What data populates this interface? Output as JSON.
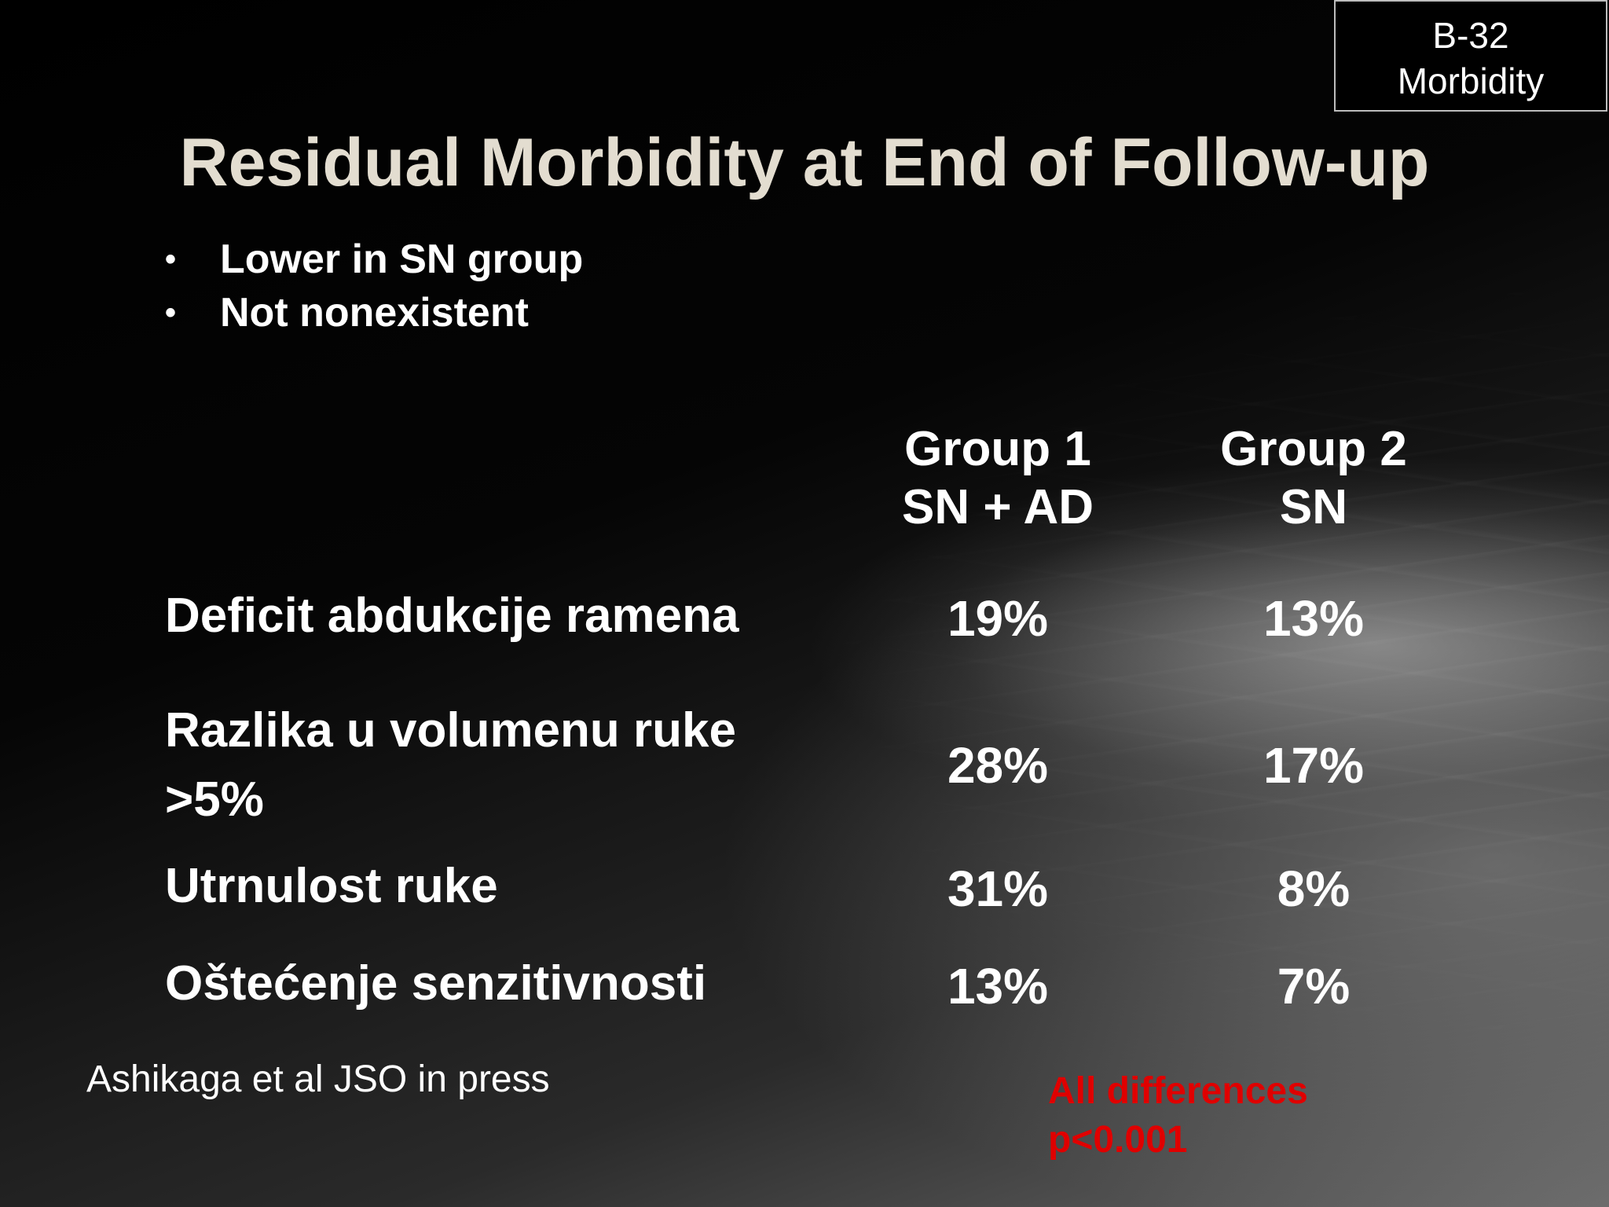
{
  "badge": {
    "line1": "B-32",
    "line2": "Morbidity"
  },
  "title": "Residual Morbidity at End of Follow-up",
  "bullets": [
    "Lower in SN group",
    "Not nonexistent"
  ],
  "table": {
    "columns": [
      {
        "line1": "Group 1",
        "line2": "SN + AD"
      },
      {
        "line1": "Group 2",
        "line2": "SN"
      }
    ],
    "rows": [
      {
        "label": "Deficit abdukcije ramena",
        "g1": "19%",
        "g2": "13%"
      },
      {
        "label": "Razlika u volumenu ruke >5%",
        "g1": "28%",
        "g2": "17%"
      },
      {
        "label": "Utrnulost ruke",
        "g1": "31%",
        "g2": "8%"
      },
      {
        "label": "Oštećenje senzitivnosti",
        "g1": "13%",
        "g2": "7%"
      }
    ]
  },
  "citation": "Ashikaga et al JSO in press",
  "note": {
    "line1": "All differences",
    "line2": "p<0.001"
  },
  "colors": {
    "title": "#e3ddd0",
    "note": "#e00000",
    "text": "#ffffff"
  }
}
